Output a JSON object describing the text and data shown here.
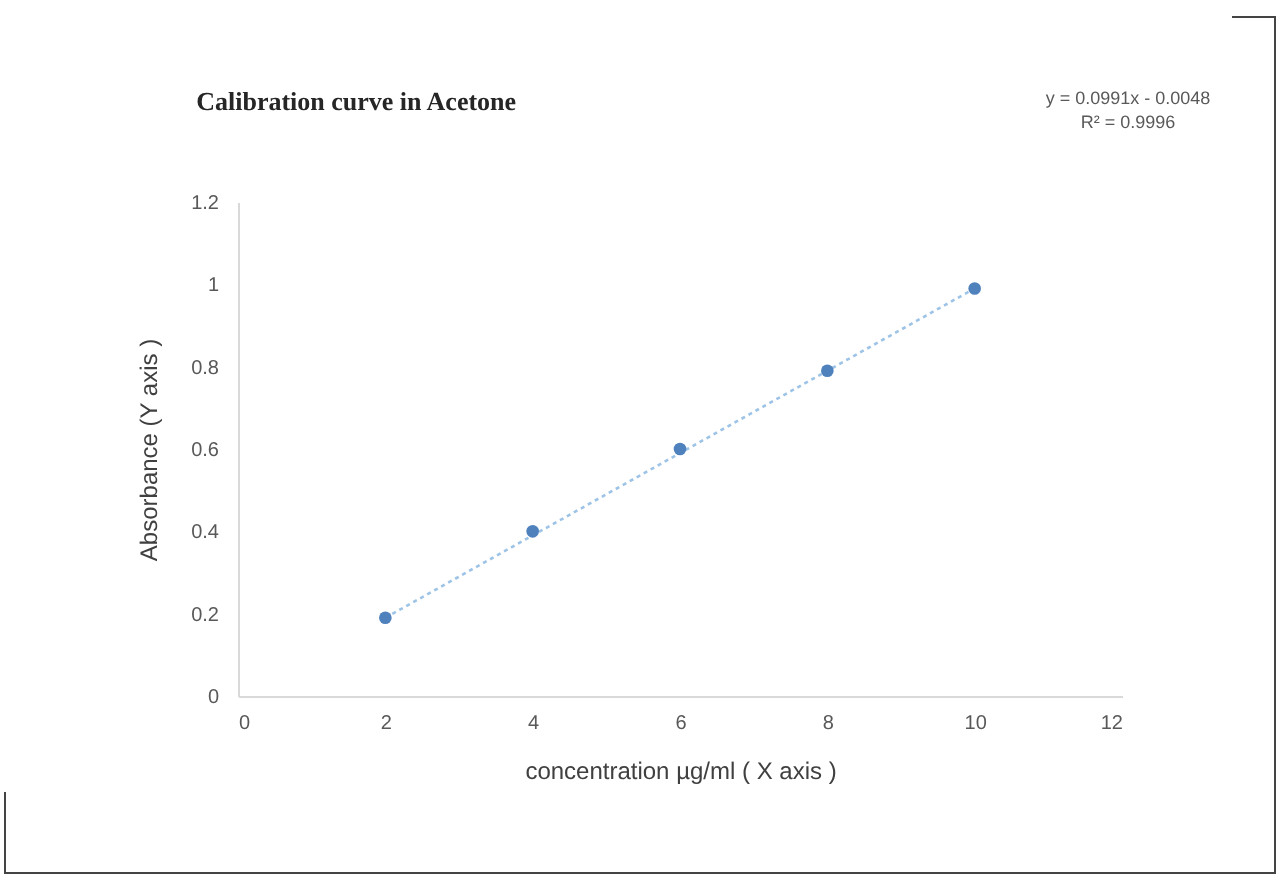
{
  "chart_data": {
    "type": "scatter",
    "title": "Calibration curve in Acetone",
    "xlabel": "concentration µg/ml ( X axis )",
    "ylabel": "Absorbance  (Y axis )",
    "annotations": [
      "y = 0.0991x - 0.0048",
      "R² = 0.9996"
    ],
    "x": [
      2,
      4,
      6,
      8,
      10
    ],
    "series": [
      {
        "color": "#4f81bd",
        "values": [
          0.19,
          0.4,
          0.6,
          0.79,
          0.99
        ],
        "marker": "circle"
      },
      {
        "type": "line",
        "color": "#9dc3e6",
        "x": [
          2,
          10
        ],
        "values": [
          0.19,
          0.99
        ],
        "line_style": "dotted"
      }
    ],
    "xlim": [
      0,
      12
    ],
    "xticks": [
      0,
      2,
      4,
      6,
      8,
      10,
      12
    ],
    "ylim": [
      0,
      1.2
    ],
    "yticks": [
      0,
      0.2,
      0.4,
      0.6,
      0.8,
      1,
      1.2
    ],
    "grid": false,
    "legend": false
  }
}
